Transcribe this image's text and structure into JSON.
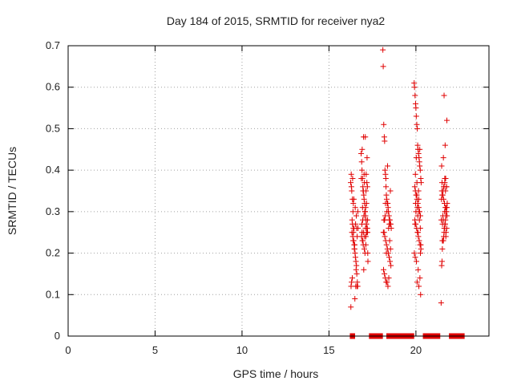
{
  "chart_data": {
    "type": "scatter",
    "title": "Day 184 of 2015, SRMTID for receiver nya2",
    "xlabel": "GPS time / hours",
    "ylabel": "SRMTID / TECUs",
    "xlim": [
      0,
      24.2
    ],
    "ylim": [
      0,
      0.7
    ],
    "x_ticks": [
      0,
      5,
      10,
      15,
      20
    ],
    "y_ticks": [
      0,
      0.1,
      0.2,
      0.3,
      0.4,
      0.5,
      0.6,
      0.7
    ],
    "x_tick_labels": [
      "0",
      "5",
      "10",
      "15",
      "20"
    ],
    "y_tick_labels": [
      "0",
      "0.1",
      "0.2",
      "0.3",
      "0.4",
      "0.5",
      "0.6",
      "0.7"
    ],
    "grid": true,
    "legend": "none",
    "marker_color": "#e00000",
    "marker": "plus",
    "zero_segments": [
      [
        16.2,
        16.5
      ],
      [
        17.3,
        18.1
      ],
      [
        18.3,
        19.9
      ],
      [
        20.4,
        21.4
      ],
      [
        21.9,
        22.8
      ]
    ],
    "series": [
      {
        "x": [
          16.25,
          16.28,
          16.31,
          16.33,
          16.35,
          16.38,
          16.4,
          16.42,
          16.45,
          16.47,
          16.5,
          16.52,
          16.55,
          16.58,
          16.6,
          16.63,
          16.65,
          16.27,
          16.3,
          16.34,
          16.37,
          16.41,
          16.44,
          16.48,
          16.53,
          16.57,
          16.62,
          16.29,
          16.36,
          16.43,
          16.51,
          16.59,
          16.32,
          16.46,
          16.39,
          16.56,
          16.61,
          16.26,
          16.49,
          16.54,
          16.67,
          16.66,
          16.4,
          16.35
        ],
        "y": [
          0.37,
          0.39,
          0.35,
          0.28,
          0.27,
          0.3,
          0.26,
          0.23,
          0.22,
          0.21,
          0.2,
          0.19,
          0.18,
          0.17,
          0.15,
          0.13,
          0.12,
          0.12,
          0.13,
          0.14,
          0.24,
          0.25,
          0.26,
          0.22,
          0.27,
          0.29,
          0.24,
          0.36,
          0.38,
          0.33,
          0.31,
          0.26,
          0.25,
          0.21,
          0.23,
          0.16,
          0.12,
          0.07,
          0.09,
          0.12,
          0.26,
          0.3,
          0.32,
          0.33
        ]
      },
      {
        "x": [
          16.85,
          16.88,
          16.9,
          16.93,
          16.95,
          16.98,
          17.0,
          17.02,
          17.05,
          17.08,
          17.1,
          17.13,
          17.15,
          17.18,
          17.2,
          17.22,
          16.87,
          16.92,
          16.97,
          17.03,
          17.07,
          17.12,
          17.17,
          16.89,
          16.94,
          17.01,
          17.06,
          17.11,
          17.16,
          17.21,
          16.86,
          16.96,
          17.04,
          17.14,
          17.19,
          16.91,
          16.99,
          17.09,
          17.23,
          17.24,
          17.0,
          16.95,
          17.1,
          17.15,
          16.9,
          17.05,
          17.2,
          17.08,
          16.93,
          17.13,
          17.18,
          17.02,
          16.98,
          17.22,
          17.12
        ],
        "y": [
          0.44,
          0.42,
          0.4,
          0.38,
          0.36,
          0.35,
          0.34,
          0.33,
          0.32,
          0.3,
          0.29,
          0.28,
          0.27,
          0.26,
          0.26,
          0.25,
          0.24,
          0.23,
          0.22,
          0.21,
          0.2,
          0.24,
          0.25,
          0.27,
          0.28,
          0.29,
          0.3,
          0.31,
          0.32,
          0.36,
          0.38,
          0.35,
          0.37,
          0.39,
          0.43,
          0.45,
          0.48,
          0.48,
          0.2,
          0.18,
          0.16,
          0.23,
          0.26,
          0.27,
          0.25,
          0.24,
          0.26,
          0.3,
          0.31,
          0.35,
          0.37,
          0.39,
          0.25,
          0.28,
          0.22
        ]
      },
      {
        "x": [
          18.1,
          18.12,
          18.15,
          18.18,
          18.2,
          18.22,
          18.25,
          18.28,
          18.3,
          18.32,
          18.35,
          18.38,
          18.4,
          18.42,
          18.45,
          18.48,
          18.5,
          18.52,
          18.55,
          18.58,
          18.13,
          18.17,
          18.21,
          18.26,
          18.31,
          18.36,
          18.41,
          18.46,
          18.51,
          18.56,
          18.14,
          18.19,
          18.24,
          18.29,
          18.34,
          18.39,
          18.44,
          18.49,
          18.54,
          18.16,
          18.23,
          18.33,
          18.43,
          18.53,
          18.27,
          18.37,
          18.47,
          18.3,
          18.25,
          18.2
        ],
        "y": [
          0.69,
          0.65,
          0.51,
          0.48,
          0.47,
          0.4,
          0.39,
          0.36,
          0.34,
          0.33,
          0.32,
          0.32,
          0.31,
          0.3,
          0.29,
          0.28,
          0.28,
          0.27,
          0.27,
          0.26,
          0.25,
          0.25,
          0.24,
          0.23,
          0.22,
          0.21,
          0.2,
          0.19,
          0.18,
          0.17,
          0.16,
          0.15,
          0.14,
          0.13,
          0.13,
          0.12,
          0.14,
          0.23,
          0.21,
          0.28,
          0.29,
          0.3,
          0.26,
          0.35,
          0.38,
          0.41,
          0.27,
          0.2,
          0.32,
          0.28
        ]
      },
      {
        "x": [
          19.9,
          19.92,
          19.95,
          19.98,
          20.0,
          20.02,
          20.05,
          20.08,
          20.1,
          20.12,
          20.15,
          20.18,
          20.2,
          20.22,
          20.25,
          20.28,
          20.3,
          19.93,
          19.97,
          20.01,
          20.06,
          20.11,
          20.16,
          20.21,
          20.26,
          19.94,
          19.99,
          20.04,
          20.09,
          20.14,
          20.19,
          20.24,
          20.29,
          19.91,
          19.96,
          20.03,
          20.13,
          20.23,
          20.07,
          20.17,
          20.27,
          20.0,
          20.1,
          20.2,
          19.95,
          20.05,
          20.15,
          20.25,
          19.98,
          20.08,
          20.18,
          20.12,
          20.02,
          20.22,
          20.28,
          19.97,
          20.06,
          20.16,
          20.26
        ],
        "y": [
          0.61,
          0.6,
          0.58,
          0.56,
          0.55,
          0.53,
          0.51,
          0.5,
          0.46,
          0.45,
          0.44,
          0.43,
          0.42,
          0.41,
          0.4,
          0.38,
          0.37,
          0.36,
          0.35,
          0.34,
          0.33,
          0.32,
          0.31,
          0.3,
          0.29,
          0.28,
          0.27,
          0.26,
          0.25,
          0.24,
          0.23,
          0.22,
          0.21,
          0.2,
          0.19,
          0.18,
          0.16,
          0.14,
          0.13,
          0.12,
          0.1,
          0.3,
          0.29,
          0.28,
          0.27,
          0.34,
          0.35,
          0.26,
          0.32,
          0.31,
          0.3,
          0.25,
          0.43,
          0.45,
          0.22,
          0.39,
          0.37,
          0.33,
          0.2
        ]
      },
      {
        "x": [
          21.45,
          21.48,
          21.5,
          21.52,
          21.55,
          21.58,
          21.6,
          21.62,
          21.65,
          21.68,
          21.7,
          21.72,
          21.75,
          21.78,
          21.8,
          21.47,
          21.51,
          21.56,
          21.61,
          21.66,
          21.71,
          21.76,
          21.49,
          21.54,
          21.59,
          21.64,
          21.69,
          21.74,
          21.79,
          21.46,
          21.53,
          21.63,
          21.73,
          21.57,
          21.67,
          21.77,
          21.5,
          21.6,
          21.7,
          21.55,
          21.65,
          21.75,
          21.48,
          21.58,
          21.68,
          21.78,
          21.62,
          21.72,
          21.52,
          21.66,
          21.76
        ],
        "y": [
          0.08,
          0.17,
          0.18,
          0.21,
          0.23,
          0.23,
          0.24,
          0.25,
          0.26,
          0.27,
          0.28,
          0.29,
          0.3,
          0.31,
          0.32,
          0.33,
          0.34,
          0.35,
          0.36,
          0.37,
          0.38,
          0.36,
          0.35,
          0.34,
          0.33,
          0.32,
          0.31,
          0.3,
          0.29,
          0.28,
          0.27,
          0.26,
          0.25,
          0.28,
          0.27,
          0.26,
          0.37,
          0.36,
          0.35,
          0.29,
          0.3,
          0.31,
          0.41,
          0.43,
          0.46,
          0.52,
          0.58,
          0.24,
          0.23,
          0.38,
          0.36
        ]
      }
    ]
  }
}
